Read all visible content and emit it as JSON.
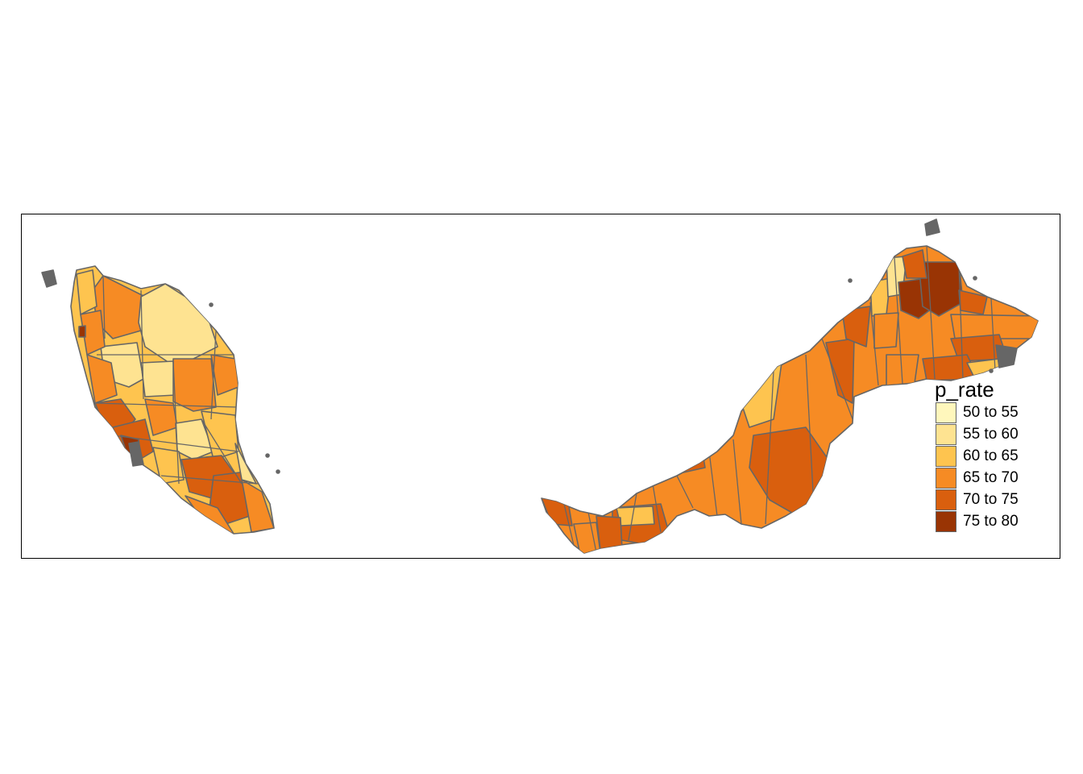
{
  "map": {
    "title": "",
    "legend": {
      "title": "p_rate",
      "position": "bottom-right",
      "items": [
        {
          "label": "50 to 55",
          "color": "#fff7bc"
        },
        {
          "label": "55 to 60",
          "color": "#fee391"
        },
        {
          "label": "60 to 65",
          "color": "#fec44f"
        },
        {
          "label": "65 to 70",
          "color": "#f68b24"
        },
        {
          "label": "70 to 75",
          "color": "#d95f0e"
        },
        {
          "label": "75 to 80",
          "color": "#993404"
        }
      ]
    },
    "border_color": "#666666",
    "regions": [
      "Peninsular Malaysia",
      "Sarawak",
      "Sabah"
    ]
  }
}
